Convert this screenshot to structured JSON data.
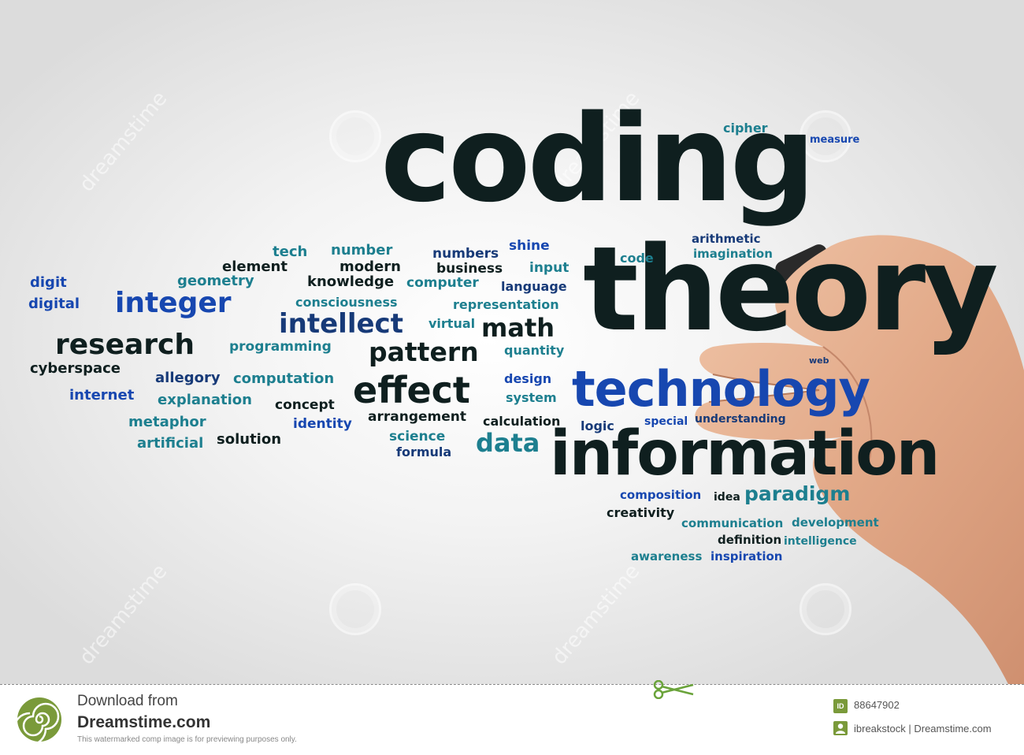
{
  "headline": {
    "word1": "coding",
    "word2": "theory",
    "word3": "technology",
    "word4": "information"
  },
  "cloud": {
    "cipher": "cipher",
    "measure": "measure",
    "arithmetic": "arithmetic",
    "imagination": "imagination",
    "code": "code",
    "tech": "tech",
    "number": "number",
    "numbers": "numbers",
    "shine": "shine",
    "element": "element",
    "modern": "modern",
    "business": "business",
    "input": "input",
    "digit": "digit",
    "geometry": "geometry",
    "knowledge": "knowledge",
    "computer": "computer",
    "language": "language",
    "digital": "digital",
    "integer": "integer",
    "consciousness": "consciousness",
    "representation": "representation",
    "intellect": "intellect",
    "virtual": "virtual",
    "math": "math",
    "research": "research",
    "programming": "programming",
    "pattern": "pattern",
    "quantity": "quantity",
    "cyberspace": "cyberspace",
    "allegory": "allegory",
    "computation": "computation",
    "design": "design",
    "web": "web",
    "effect": "effect",
    "internet": "internet",
    "explanation": "explanation",
    "system": "system",
    "concept": "concept",
    "metaphor": "metaphor",
    "arrangement": "arrangement",
    "calculation": "calculation",
    "special": "special",
    "understanding": "understanding",
    "identity": "identity",
    "logic": "logic",
    "artificial": "artificial",
    "solution": "solution",
    "science": "science",
    "data": "data",
    "formula": "formula",
    "composition": "composition",
    "idea": "idea",
    "paradigm": "paradigm",
    "creativity": "creativity",
    "communication": "communication",
    "development": "development",
    "definition": "definition",
    "intelligence": "intelligence",
    "awareness": "awareness",
    "inspiration": "inspiration"
  },
  "watermark": {
    "text": "dreamstime"
  },
  "footer": {
    "download_from": "Download from",
    "site": "Dreamstime.com",
    "disclaimer": "This watermarked comp image is for previewing purposes only.",
    "id_label": "ID",
    "id_value": "88647902",
    "credit": "ibreakstock | Dreamstime.com"
  },
  "colors": {
    "dark": "#0f1f1f",
    "teal": "#1d7f8f",
    "blue": "#1747b0",
    "navy": "#173a78",
    "green": "#7a9a3a"
  },
  "icons": [
    "dreamstime-spiral-logo",
    "scissors-icon",
    "id-badge-icon",
    "user-badge-icon",
    "hand-with-marker"
  ]
}
